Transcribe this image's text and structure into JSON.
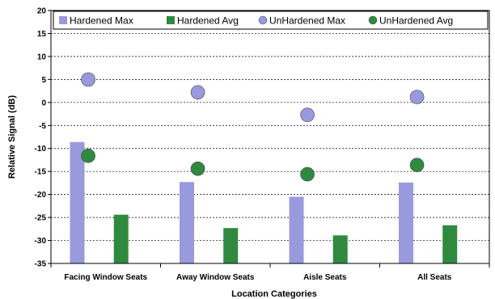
{
  "chart_data": {
    "type": "bar",
    "categories": [
      "Facing Window Seats",
      "Away Window Seats",
      "Aisle Seats",
      "All Seats"
    ],
    "series": [
      {
        "name": "Hardened Max",
        "kind": "bar",
        "color": "#9999dd",
        "values": [
          -8.6,
          -17.3,
          -20.5,
          -17.4
        ]
      },
      {
        "name": "Hardened Avg",
        "kind": "bar",
        "color": "#2f8a3f",
        "values": [
          -24.4,
          -27.3,
          -28.9,
          -26.7
        ]
      },
      {
        "name": "UnHardened Max",
        "kind": "marker",
        "color": "#9999dd",
        "values": [
          5.0,
          2.2,
          -2.7,
          1.2
        ]
      },
      {
        "name": "UnHardened Avg",
        "kind": "marker",
        "color": "#2f8a3f",
        "values": [
          -11.6,
          -14.4,
          -15.6,
          -13.6
        ]
      }
    ],
    "yticks": [
      20,
      15,
      10,
      5,
      0,
      -5,
      -10,
      -15,
      -20,
      -25,
      -30,
      -35
    ],
    "ylim": [
      -35,
      20
    ],
    "xlabel": "Location Categories",
    "ylabel": "Relative Signal (dB)",
    "grid": true,
    "legend": "top"
  }
}
